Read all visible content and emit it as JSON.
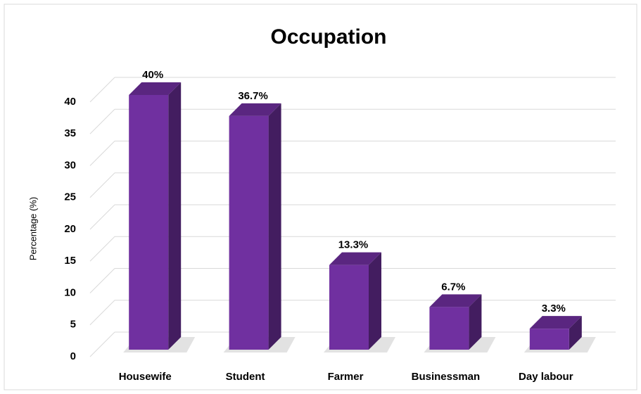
{
  "chart_data": {
    "type": "bar3d",
    "title": "Occupation",
    "y_label": "Percentage (%)",
    "categories": [
      "Housewife",
      "Student",
      "Farmer",
      "Businessman",
      "Day labour"
    ],
    "values": [
      40,
      36.7,
      13.3,
      6.7,
      3.3
    ],
    "value_labels": [
      "40%",
      "36.7%",
      "13.3%",
      "6.7%",
      "3.3%"
    ],
    "color": "#7030a0",
    "ylim": [
      0,
      40
    ],
    "yticks": [
      0,
      5,
      10,
      15,
      20,
      25,
      30,
      35,
      40
    ],
    "grid": true
  }
}
